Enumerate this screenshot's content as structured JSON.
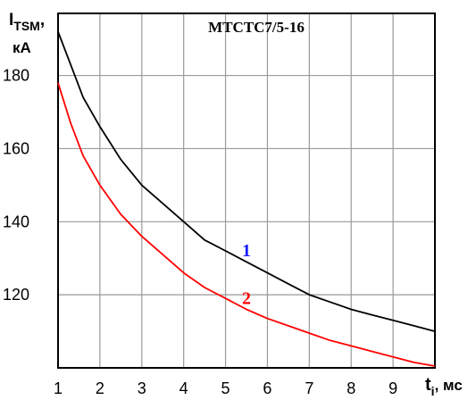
{
  "chart_data": {
    "type": "line",
    "title": "МТСТС7/5-16",
    "ylabel": {
      "main": "I",
      "sub": "TSM",
      "suffix": ",",
      "unit": "кА"
    },
    "xlabel": {
      "main": "t",
      "sub": "i",
      "suffix": ", мс"
    },
    "xlim": [
      1,
      10
    ],
    "ylim": [
      100,
      197
    ],
    "x_ticks": [
      "1",
      "2",
      "3",
      "4",
      "5",
      "6",
      "7",
      "8",
      "9"
    ],
    "y_ticks": [
      "120",
      "140",
      "160",
      "180"
    ],
    "y_tick_values": [
      120,
      140,
      160,
      180
    ],
    "grid": true,
    "series": [
      {
        "name": "1",
        "color": "#000000",
        "label_color": "#1a1aff",
        "x": [
          1.0,
          1.3,
          1.6,
          2.0,
          2.5,
          3.0,
          3.5,
          4.0,
          4.5,
          5.0,
          5.5,
          6.0,
          6.5,
          7.0,
          7.5,
          8.0,
          8.5,
          9.0,
          9.5,
          10.0
        ],
        "y": [
          192,
          183,
          174,
          166,
          157,
          150,
          145,
          140,
          135,
          132,
          129,
          126,
          123,
          120,
          118,
          116,
          114.5,
          113,
          111.5,
          110
        ]
      },
      {
        "name": "2",
        "color": "#ff0000",
        "label_color": "#ff0000",
        "x": [
          1.0,
          1.3,
          1.6,
          2.0,
          2.5,
          3.0,
          3.5,
          4.0,
          4.5,
          5.0,
          5.5,
          6.0,
          6.5,
          7.0,
          7.5,
          8.0,
          8.5,
          9.0,
          9.5,
          10.0
        ],
        "y": [
          178,
          167,
          158,
          150,
          142,
          136,
          131,
          126,
          122,
          119,
          116,
          113.5,
          111.5,
          109.5,
          107.5,
          106,
          104.5,
          103,
          101.5,
          100.5
        ]
      }
    ],
    "curve_labels": [
      {
        "text": "1",
        "series": 0,
        "x": 5.5,
        "y": 130.5
      },
      {
        "text": "2",
        "series": 1,
        "x": 5.5,
        "y": 117.5
      }
    ]
  }
}
